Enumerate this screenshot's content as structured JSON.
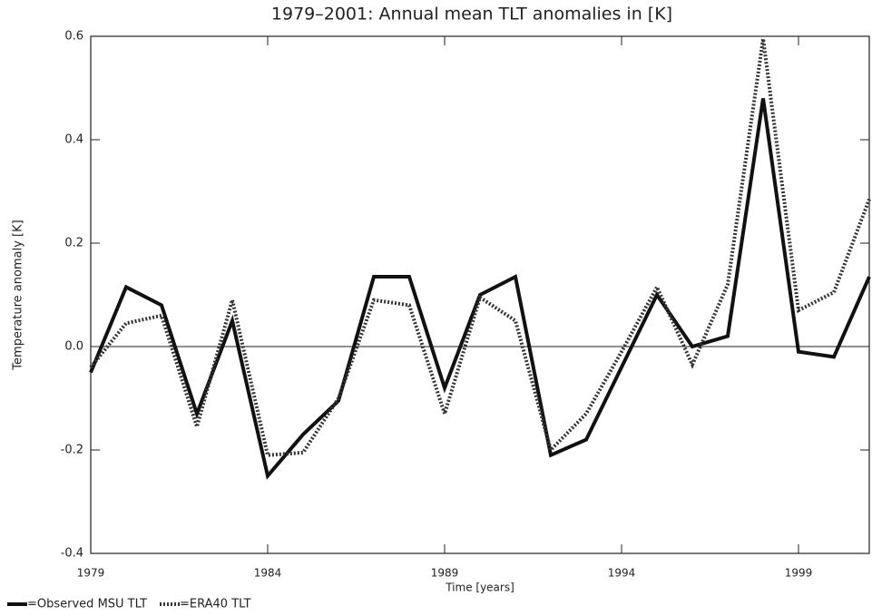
{
  "chart_data": {
    "type": "line",
    "title": "1979–2001: Annual mean TLT anomalies in [K]",
    "x_label": "Time [years]",
    "y_label": "Temperature anomaly [K]",
    "x": [
      1979,
      1980,
      1981,
      1982,
      1983,
      1984,
      1985,
      1986,
      1987,
      1988,
      1989,
      1990,
      1991,
      1992,
      1993,
      1994,
      1995,
      1996,
      1997,
      1998,
      1999,
      2000,
      2001
    ],
    "series": [
      {
        "name": "=Observed MSU TLT",
        "color": "#111111",
        "style": "solid",
        "values": [
          -0.05,
          0.115,
          0.08,
          -0.13,
          0.05,
          -0.25,
          -0.17,
          -0.105,
          0.135,
          0.135,
          -0.08,
          0.1,
          0.135,
          -0.21,
          -0.18,
          -0.04,
          0.1,
          0.0,
          0.02,
          0.48,
          -0.01,
          -0.02,
          0.135
        ]
      },
      {
        "name": "=ERA40 TLT",
        "color": "#333333",
        "style": "dotted",
        "values": [
          -0.04,
          0.045,
          0.06,
          -0.155,
          0.09,
          -0.21,
          -0.205,
          -0.1,
          0.09,
          0.08,
          -0.13,
          0.095,
          0.05,
          -0.2,
          -0.13,
          -0.01,
          0.115,
          -0.035,
          0.12,
          0.595,
          0.07,
          0.105,
          0.285
        ]
      }
    ],
    "xlim": [
      1979,
      2001
    ],
    "xticks": [
      1979,
      1984,
      1989,
      1994,
      1999
    ],
    "ylim": [
      -0.4,
      0.6
    ],
    "yticks": [
      -0.4,
      -0.2,
      {
        "value": 0,
        "label": "0.0"
      },
      0.2,
      0.4,
      0.6
    ],
    "zero_line": true
  }
}
